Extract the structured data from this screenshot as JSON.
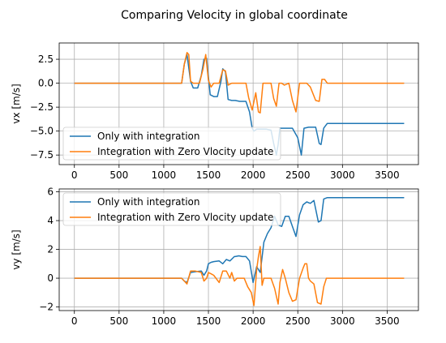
{
  "figure": {
    "title": "Comparing Velocity in global coordinate"
  },
  "chart_data": [
    {
      "type": "line",
      "ylabel": "vx [m/s]",
      "xlabel": "",
      "xlim": [
        -170,
        3850
      ],
      "ylim": [
        -8.5,
        4.2
      ],
      "xticks": [
        0,
        500,
        1000,
        1500,
        2000,
        2500,
        3000,
        3500
      ],
      "xtick_labels": [
        "0",
        "500",
        "1000",
        "1500",
        "2000",
        "2500",
        "3000",
        "3500"
      ],
      "yticks": [
        2.5,
        0.0,
        -2.5,
        -5.0,
        -7.5
      ],
      "ytick_labels": [
        "2.5",
        "0.0",
        "−2.5",
        "−5.0",
        "−7.5"
      ],
      "grid": true,
      "legend": "lower-left",
      "colors": {
        "blue": "#1f77b4",
        "orange": "#ff7f0e"
      },
      "series": [
        {
          "name": "Only with integration",
          "color": "#1f77b4",
          "x": [
            0,
            1200,
            1230,
            1260,
            1300,
            1330,
            1380,
            1420,
            1450,
            1480,
            1520,
            1560,
            1600,
            1640,
            1660,
            1690,
            1720,
            1760,
            1800,
            1850,
            1880,
            1920,
            1960,
            1990,
            2010,
            2040,
            2080,
            2150,
            2200,
            2230,
            2260,
            2280,
            2300,
            2320,
            2380,
            2440,
            2500,
            2540,
            2570,
            2620,
            2700,
            2740,
            2760,
            2790,
            2830,
            3000,
            3690
          ],
          "y": [
            0,
            0,
            2.0,
            3.0,
            0.2,
            -0.5,
            -0.5,
            0.8,
            2.5,
            2.6,
            -1.2,
            -1.4,
            -1.4,
            0.2,
            1.5,
            1.2,
            -1.7,
            -1.8,
            -1.8,
            -1.9,
            -1.9,
            -1.9,
            -3.0,
            -4.7,
            -5.0,
            -4.8,
            -4.8,
            -4.8,
            -4.9,
            -6.3,
            -7.5,
            -6.4,
            -4.7,
            -4.7,
            -4.7,
            -4.7,
            -5.7,
            -7.5,
            -4.7,
            -4.6,
            -4.6,
            -6.3,
            -6.4,
            -4.7,
            -4.2,
            -4.2,
            -4.2
          ]
        },
        {
          "name": "Integration with Zero Vlocity update",
          "color": "#ff7f0e",
          "x": [
            0,
            1200,
            1230,
            1260,
            1280,
            1300,
            1330,
            1400,
            1440,
            1470,
            1500,
            1530,
            1560,
            1620,
            1660,
            1690,
            1720,
            1760,
            1800,
            1860,
            1920,
            1950,
            1990,
            2030,
            2060,
            2080,
            2110,
            2200,
            2230,
            2260,
            2290,
            2320,
            2350,
            2400,
            2440,
            2480,
            2520,
            2560,
            2600,
            2640,
            2700,
            2740,
            2770,
            2800,
            2830,
            2850,
            3690
          ],
          "y": [
            0,
            0,
            2.0,
            3.2,
            3.0,
            0.2,
            0.0,
            0.0,
            1.5,
            3.0,
            0.3,
            -0.4,
            0.0,
            0.0,
            1.4,
            1.3,
            -0.2,
            0.0,
            0.0,
            0.0,
            0.0,
            -1.5,
            -2.8,
            -1.0,
            -3.0,
            -3.1,
            0.0,
            0.0,
            -1.6,
            -2.4,
            0.0,
            0.0,
            -0.2,
            0.0,
            -1.8,
            -3.0,
            0.0,
            0.0,
            0.0,
            -0.4,
            -1.8,
            -1.9,
            0.4,
            0.4,
            0.0,
            0.0,
            0.0
          ]
        }
      ]
    },
    {
      "type": "line",
      "ylabel": "vy [m/s]",
      "xlabel": "",
      "xlim": [
        -170,
        3850
      ],
      "ylim": [
        -2.25,
        6.2
      ],
      "xticks": [
        0,
        500,
        1000,
        1500,
        2000,
        2500,
        3000,
        3500
      ],
      "xtick_labels": [
        "0",
        "500",
        "1000",
        "1500",
        "2000",
        "2500",
        "3000",
        "3500"
      ],
      "yticks": [
        6,
        4,
        2,
        0,
        -2
      ],
      "ytick_labels": [
        "6",
        "4",
        "2",
        "0",
        "−2"
      ],
      "grid": true,
      "legend": "upper-left",
      "colors": {
        "blue": "#1f77b4",
        "orange": "#ff7f0e"
      },
      "series": [
        {
          "name": "Only with integration",
          "color": "#1f77b4",
          "x": [
            0,
            1200,
            1230,
            1260,
            1300,
            1350,
            1420,
            1450,
            1480,
            1500,
            1530,
            1560,
            1620,
            1660,
            1700,
            1740,
            1790,
            1800,
            1840,
            1880,
            1920,
            1960,
            2000,
            2040,
            2080,
            2120,
            2160,
            2200,
            2240,
            2280,
            2320,
            2360,
            2400,
            2440,
            2480,
            2520,
            2560,
            2600,
            2640,
            2680,
            2730,
            2760,
            2790,
            2830,
            3000,
            3690
          ],
          "y": [
            0,
            0,
            -0.2,
            -0.3,
            0.4,
            0.45,
            0.5,
            0.2,
            0.5,
            1.0,
            1.1,
            1.15,
            1.2,
            1.0,
            1.3,
            1.2,
            1.5,
            1.5,
            1.55,
            1.5,
            1.5,
            1.2,
            -0.3,
            0.8,
            0.4,
            2.5,
            3.1,
            3.5,
            4.3,
            3.7,
            3.6,
            4.3,
            4.3,
            3.6,
            2.9,
            4.4,
            5.1,
            5.3,
            5.2,
            5.4,
            3.9,
            4.0,
            5.5,
            5.6,
            5.6,
            5.6
          ]
        },
        {
          "name": "Integration with Zero Vlocity update",
          "color": "#ff7f0e",
          "x": [
            0,
            1200,
            1230,
            1260,
            1300,
            1350,
            1420,
            1450,
            1480,
            1500,
            1530,
            1560,
            1620,
            1660,
            1700,
            1740,
            1760,
            1790,
            1820,
            1860,
            1900,
            1940,
            1980,
            2010,
            2040,
            2060,
            2080,
            2100,
            2120,
            2160,
            2200,
            2240,
            2280,
            2300,
            2330,
            2360,
            2400,
            2440,
            2480,
            2520,
            2560,
            2580,
            2600,
            2620,
            2640,
            2680,
            2720,
            2760,
            2790,
            2820,
            2850,
            3690
          ],
          "y": [
            0,
            0,
            -0.2,
            -0.4,
            0.5,
            0.5,
            0.4,
            -0.2,
            0.0,
            0.4,
            0.3,
            0.2,
            -0.3,
            0.5,
            0.5,
            0.0,
            0.4,
            -0.2,
            0.0,
            0.0,
            0.0,
            -0.6,
            -1.0,
            -1.9,
            0.6,
            1.5,
            2.2,
            -0.5,
            0.0,
            0.0,
            0.0,
            -0.7,
            -1.8,
            -0.3,
            0.6,
            0.0,
            -1.0,
            -1.6,
            -1.5,
            0.0,
            0.7,
            1.0,
            1.0,
            0.0,
            -0.2,
            -0.4,
            -1.7,
            -1.8,
            -0.6,
            0.0,
            0.0,
            0.0
          ]
        }
      ]
    }
  ]
}
